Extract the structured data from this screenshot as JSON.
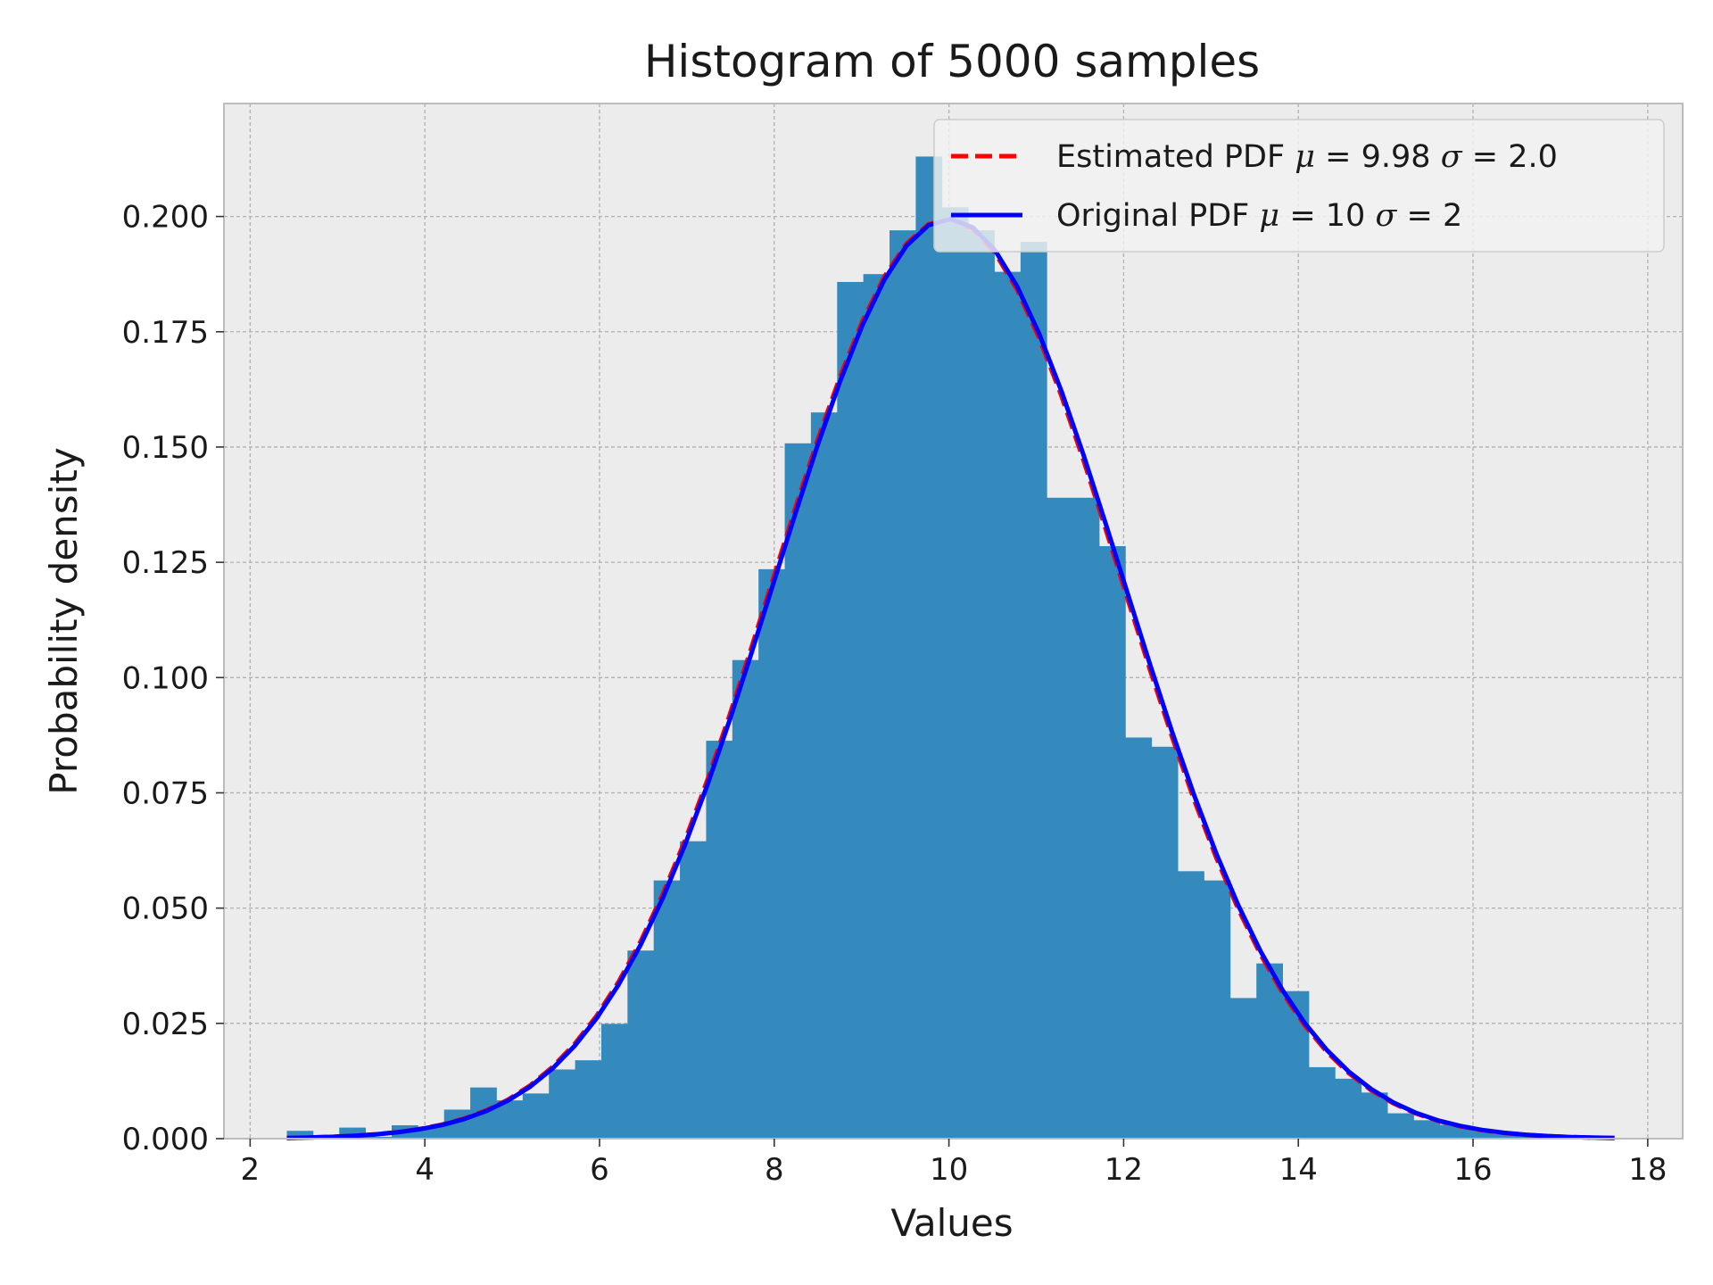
{
  "chart_data": {
    "type": "bar",
    "title": "Histogram of 5000 samples",
    "xlabel": "Values",
    "ylabel": "Probability density",
    "xlim": [
      1.7,
      18.4
    ],
    "ylim": [
      0,
      0.2245
    ],
    "x_ticks": [
      2,
      4,
      6,
      8,
      10,
      12,
      14,
      16,
      18
    ],
    "x_tick_labels": [
      "2",
      "4",
      "6",
      "8",
      "10",
      "12",
      "14",
      "16",
      "18"
    ],
    "y_ticks": [
      0,
      0.025,
      0.05,
      0.075,
      0.1,
      0.125,
      0.15,
      0.175,
      0.2
    ],
    "y_tick_labels": [
      "0.000",
      "0.025",
      "0.050",
      "0.075",
      "0.100",
      "0.125",
      "0.150",
      "0.175",
      "0.200"
    ],
    "grid": true,
    "legend_position": "top-right",
    "histogram": {
      "color": "#348ABD",
      "bin_edges": [
        2.42,
        2.72,
        3.02,
        3.32,
        3.62,
        3.92,
        4.22,
        4.52,
        4.82,
        5.12,
        5.42,
        5.72,
        6.02,
        6.32,
        6.62,
        6.92,
        7.22,
        7.52,
        7.82,
        8.12,
        8.42,
        8.72,
        9.02,
        9.32,
        9.62,
        9.92,
        10.22,
        10.52,
        10.82,
        11.12,
        11.42,
        11.72,
        12.02,
        12.32,
        12.62,
        12.92,
        13.22,
        13.52,
        13.82,
        14.12,
        14.42,
        14.72,
        15.02,
        15.32,
        15.62,
        15.92,
        16.22,
        16.52,
        16.82,
        17.12,
        17.42,
        17.72
      ],
      "densities": [
        0.0017,
        0.0004,
        0.0024,
        0.0004,
        0.0029,
        0.0026,
        0.0063,
        0.0111,
        0.0083,
        0.0098,
        0.015,
        0.017,
        0.0249,
        0.0408,
        0.056,
        0.0645,
        0.0863,
        0.1038,
        0.1235,
        0.1508,
        0.1575,
        0.1858,
        0.1875,
        0.197,
        0.213,
        0.202,
        0.197,
        0.188,
        0.1945,
        0.139,
        0.139,
        0.1285,
        0.087,
        0.085,
        0.058,
        0.056,
        0.0305,
        0.038,
        0.032,
        0.0155,
        0.013,
        0.01,
        0.0055,
        0.004,
        0.003,
        0.002,
        0.001,
        0.0005,
        0.0003,
        0.0002,
        0.0001
      ]
    },
    "series": [
      {
        "name": "Estimated PDF",
        "mu": 9.98,
        "sigma": 2.0,
        "color": "#ff0000",
        "style": "dashed"
      },
      {
        "name": "Original PDF",
        "mu": 10,
        "sigma": 2,
        "color": "#0000ff",
        "style": "solid"
      }
    ],
    "curve_x_range": [
      2.42,
      17.62
    ],
    "legend": [
      {
        "name": "Estimated PDF",
        "mu": "9.98",
        "sigma": "2.0"
      },
      {
        "name": "Original PDF",
        "mu": "10",
        "sigma": "2"
      }
    ],
    "colors": {
      "background": "#ececec",
      "grid": "#b0b0b0",
      "frame": "#bcbcbc"
    }
  }
}
